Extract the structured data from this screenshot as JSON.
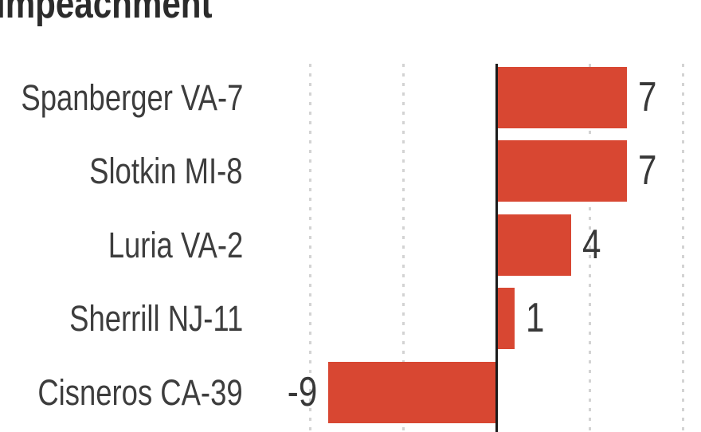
{
  "title": {
    "visible_text": "impeachment"
  },
  "colors": {
    "bar": "#d84732",
    "axis": "#1a1a1a",
    "grid": "#d3d3d3",
    "title_text": "#2b2b2b",
    "label_text": "#3d3d3d",
    "value_text": "#383838",
    "background": "#ffffff"
  },
  "chart_data": {
    "type": "bar",
    "orientation": "horizontal",
    "title": "impeachment",
    "categories": [
      "Spanberger VA-7",
      "Slotkin MI-8",
      "Luria VA-2",
      "Sherrill NJ-11",
      "Cisneros CA-39"
    ],
    "values": [
      7,
      7,
      4,
      1,
      -9
    ],
    "value_labels": [
      "7",
      "7",
      "4",
      "1",
      "-9"
    ],
    "xlim": [
      -10,
      10
    ],
    "gridline_values": [
      -10,
      -5,
      0,
      5,
      10
    ],
    "grid": true,
    "legend": false,
    "xlabel": "",
    "ylabel": "",
    "axis_tick_labels_visible": false
  }
}
